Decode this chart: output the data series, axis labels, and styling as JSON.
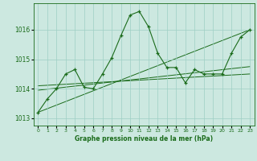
{
  "title": "Graphe pression niveau de la mer (hPa)",
  "background_color": "#cce8e0",
  "plot_bg_color": "#cce8e0",
  "grid_color": "#9ecfc4",
  "line_color": "#1a6b1a",
  "ylim": [
    1012.75,
    1016.9
  ],
  "yticks": [
    1013,
    1014,
    1015,
    1016
  ],
  "xlim": [
    -0.5,
    23.5
  ],
  "xticks": [
    0,
    1,
    2,
    3,
    4,
    5,
    6,
    7,
    8,
    9,
    10,
    11,
    12,
    13,
    14,
    15,
    16,
    17,
    18,
    19,
    20,
    21,
    22,
    23
  ],
  "main_series": {
    "x": [
      0,
      1,
      2,
      3,
      4,
      5,
      6,
      7,
      8,
      9,
      10,
      11,
      12,
      13,
      14,
      15,
      16,
      17,
      18,
      19,
      20,
      21,
      22,
      23
    ],
    "y": [
      1013.2,
      1013.65,
      1014.0,
      1014.5,
      1014.65,
      1014.05,
      1014.0,
      1014.5,
      1015.05,
      1015.8,
      1016.5,
      1016.62,
      1016.1,
      1015.2,
      1014.72,
      1014.72,
      1014.2,
      1014.65,
      1014.5,
      1014.5,
      1014.5,
      1015.2,
      1015.75,
      1016.0
    ]
  },
  "line_steep": {
    "x": [
      0,
      23
    ],
    "y": [
      1013.2,
      1016.0
    ]
  },
  "line_mid": {
    "x": [
      0,
      23
    ],
    "y": [
      1013.95,
      1014.75
    ]
  },
  "line_flat": {
    "x": [
      0,
      23
    ],
    "y": [
      1014.1,
      1014.5
    ]
  }
}
